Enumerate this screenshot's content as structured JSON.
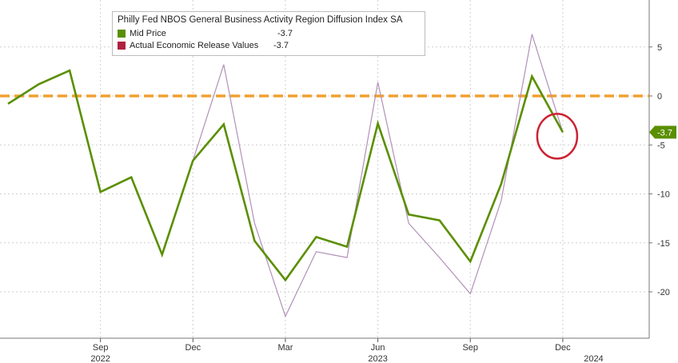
{
  "chart_data": {
    "type": "line",
    "title": "Philly Fed NBOS General Business Activity Region Diffusion Index SA",
    "ylim": [
      -25,
      10
    ],
    "yticks": [
      5,
      0,
      -5,
      -10,
      -15,
      -20
    ],
    "xlim": [
      "2022-06",
      "2024-02"
    ],
    "x_ticks": [
      "Sep",
      "Dec",
      "Mar",
      "Jun",
      "Sep",
      "Dec"
    ],
    "x_tick_dates": [
      "2022-09",
      "2022-12",
      "2023-03",
      "2023-06",
      "2023-09",
      "2023-12"
    ],
    "year_labels": [
      "2022",
      "2023",
      "2024"
    ],
    "year_label_dates": [
      "2022-09",
      "2023-06",
      "2024-01"
    ],
    "reference_line": 0,
    "reference_color": "#f0a030",
    "last_value_tag": "-3.7",
    "series": [
      {
        "name": "Mid Price",
        "color": "#5a8f00",
        "last_value": "-3.7",
        "x": [
          "2022-06",
          "2022-07",
          "2022-08",
          "2022-09",
          "2022-10",
          "2022-11",
          "2022-12",
          "2023-01",
          "2023-02",
          "2023-03",
          "2023-04",
          "2023-05",
          "2023-06",
          "2023-07",
          "2023-08",
          "2023-09",
          "2023-10",
          "2023-11",
          "2023-12",
          "2024-01"
        ],
        "values": [
          -0.8,
          1.2,
          2.6,
          -9.8,
          -8.3,
          -16.2,
          -6.6,
          -2.9,
          -14.8,
          -18.8,
          -14.4,
          -15.4,
          -2.8,
          -12.1,
          -12.7,
          -16.9,
          -9.0,
          2.0,
          -3.7,
          null
        ]
      },
      {
        "name": "Actual Economic Release Values",
        "color": "#b290b8",
        "last_value": "-3.7",
        "x": [
          "2022-06",
          "2022-07",
          "2022-08",
          "2022-09",
          "2022-10",
          "2022-11",
          "2022-12",
          "2023-01",
          "2023-02",
          "2023-03",
          "2023-04",
          "2023-05",
          "2023-06",
          "2023-07",
          "2023-08",
          "2023-09",
          "2023-10",
          "2023-11",
          "2023-12",
          "2024-01"
        ],
        "values": [
          -0.8,
          1.2,
          2.6,
          -9.8,
          -8.3,
          -16.2,
          -6.6,
          3.2,
          -13.0,
          -22.5,
          -15.9,
          -16.5,
          1.4,
          -13.0,
          -16.5,
          -20.2,
          -10.7,
          6.3,
          -3.7,
          null
        ]
      }
    ]
  },
  "legend_swatch_colors": [
    "#5a8f00",
    "#b02040"
  ],
  "highlight_color": "#cc2233",
  "tag_color": "#5a8f00"
}
